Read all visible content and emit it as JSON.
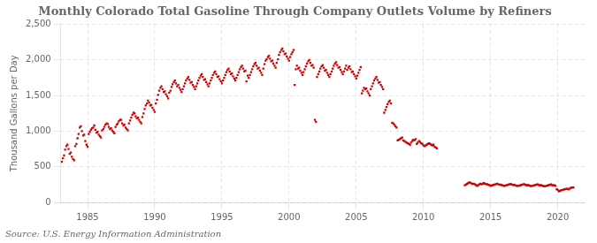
{
  "chart_data": {
    "type": "scatter",
    "title": "Monthly Colorado Total Gasoline Through Company Outlets Volume by Refiners",
    "ylabel": "Thousand Gallons per Day",
    "source": "Source: U.S. Energy Information Administration",
    "color": "#cc0000",
    "marker": "square",
    "grid": true,
    "xlim": [
      1983.0,
      2022.0
    ],
    "xticks": [
      1985,
      1990,
      1995,
      2000,
      2005,
      2010,
      2015,
      2020
    ],
    "ylim": [
      0,
      2500
    ],
    "yticks": [
      0,
      500,
      {
        "value": 1000,
        "label": "1,000"
      },
      {
        "value": 1500,
        "label": "1,500"
      },
      {
        "value": 2000,
        "label": "2,000"
      },
      {
        "value": 2500,
        "label": "2,500"
      }
    ],
    "x": [
      1983.08,
      1983.17,
      1983.25,
      1983.33,
      1983.42,
      1983.5,
      1983.58,
      1983.67,
      1983.75,
      1983.83,
      1983.92,
      1984.0,
      1984.08,
      1984.17,
      1984.25,
      1984.33,
      1984.42,
      1984.5,
      1984.58,
      1984.67,
      1984.75,
      1984.83,
      1984.92,
      1985.0,
      1985.08,
      1985.17,
      1985.25,
      1985.33,
      1985.42,
      1985.5,
      1985.58,
      1985.67,
      1985.75,
      1985.83,
      1985.92,
      1986.0,
      1986.08,
      1986.17,
      1986.25,
      1986.33,
      1986.42,
      1986.5,
      1986.58,
      1986.67,
      1986.75,
      1986.83,
      1986.92,
      1987.0,
      1987.08,
      1987.17,
      1987.25,
      1987.33,
      1987.42,
      1987.5,
      1987.58,
      1987.67,
      1987.75,
      1987.83,
      1987.92,
      1988.0,
      1988.08,
      1988.17,
      1988.25,
      1988.33,
      1988.42,
      1988.5,
      1988.58,
      1988.67,
      1988.75,
      1988.83,
      1988.92,
      1989.0,
      1989.08,
      1989.17,
      1989.25,
      1989.33,
      1989.42,
      1989.5,
      1989.58,
      1989.67,
      1989.75,
      1989.83,
      1989.92,
      1990.0,
      1990.08,
      1990.17,
      1990.25,
      1990.33,
      1990.42,
      1990.5,
      1990.58,
      1990.67,
      1990.75,
      1990.83,
      1990.92,
      1991.0,
      1991.08,
      1991.17,
      1991.25,
      1991.33,
      1991.42,
      1991.5,
      1991.58,
      1991.67,
      1991.75,
      1991.83,
      1991.92,
      1992.0,
      1992.08,
      1992.17,
      1992.25,
      1992.33,
      1992.42,
      1992.5,
      1992.58,
      1992.67,
      1992.75,
      1992.83,
      1992.92,
      1993.0,
      1993.08,
      1993.17,
      1993.25,
      1993.33,
      1993.42,
      1993.5,
      1993.58,
      1993.67,
      1993.75,
      1993.83,
      1993.92,
      1994.0,
      1994.08,
      1994.17,
      1994.25,
      1994.33,
      1994.42,
      1994.5,
      1994.58,
      1994.67,
      1994.75,
      1994.83,
      1994.92,
      1995.0,
      1995.08,
      1995.17,
      1995.25,
      1995.33,
      1995.42,
      1995.5,
      1995.58,
      1995.67,
      1995.75,
      1995.83,
      1995.92,
      1996.0,
      1996.08,
      1996.17,
      1996.25,
      1996.33,
      1996.42,
      1996.5,
      1996.58,
      1996.67,
      1996.75,
      1996.83,
      1996.92,
      1997.0,
      1997.08,
      1997.17,
      1997.25,
      1997.33,
      1997.42,
      1997.5,
      1997.58,
      1997.67,
      1997.75,
      1997.83,
      1997.92,
      1998.0,
      1998.08,
      1998.17,
      1998.25,
      1998.33,
      1998.42,
      1998.5,
      1998.58,
      1998.67,
      1998.75,
      1998.83,
      1998.92,
      1999.0,
      1999.08,
      1999.17,
      1999.25,
      1999.33,
      1999.42,
      1999.5,
      1999.58,
      1999.67,
      1999.75,
      1999.83,
      1999.92,
      2000.0,
      2000.08,
      2000.17,
      2000.25,
      2000.33,
      2000.42,
      2000.5,
      2000.58,
      2000.67,
      2000.75,
      2000.83,
      2000.92,
      2001.0,
      2001.08,
      2001.17,
      2001.25,
      2001.33,
      2001.42,
      2001.5,
      2001.58,
      2001.67,
      2001.75,
      2001.83,
      2001.92,
      2002.0,
      2002.08,
      2002.17,
      2002.25,
      2002.33,
      2002.42,
      2002.5,
      2002.58,
      2002.67,
      2002.75,
      2002.83,
      2002.92,
      2003.0,
      2003.08,
      2003.17,
      2003.25,
      2003.33,
      2003.42,
      2003.5,
      2003.58,
      2003.67,
      2003.75,
      2003.83,
      2003.92,
      2004.0,
      2004.08,
      2004.17,
      2004.25,
      2004.33,
      2004.42,
      2004.5,
      2004.58,
      2004.67,
      2004.75,
      2004.83,
      2004.92,
      2005.0,
      2005.08,
      2005.17,
      2005.25,
      2005.33,
      2005.42,
      2005.5,
      2005.58,
      2005.67,
      2005.75,
      2005.83,
      2005.92,
      2006.0,
      2006.08,
      2006.17,
      2006.25,
      2006.33,
      2006.42,
      2006.5,
      2006.58,
      2006.67,
      2006.75,
      2006.83,
      2006.92,
      2007.0,
      2007.08,
      2007.17,
      2007.25,
      2007.33,
      2007.42,
      2007.5,
      2007.58,
      2007.67,
      2007.75,
      2007.83,
      2007.92,
      2008.0,
      2008.08,
      2008.17,
      2008.25,
      2008.33,
      2008.42,
      2008.5,
      2008.58,
      2008.67,
      2008.75,
      2008.83,
      2008.92,
      2009.0,
      2009.08,
      2009.17,
      2009.25,
      2009.33,
      2009.42,
      2009.5,
      2009.58,
      2009.67,
      2009.75,
      2009.83,
      2009.92,
      2010.0,
      2010.08,
      2010.17,
      2010.25,
      2010.33,
      2010.42,
      2010.5,
      2010.58,
      2010.67,
      2010.75,
      2010.83,
      2010.92,
      2011.0,
      2013.08,
      2013.17,
      2013.25,
      2013.33,
      2013.42,
      2013.5,
      2013.58,
      2013.67,
      2013.75,
      2013.83,
      2013.92,
      2014.0,
      2014.08,
      2014.17,
      2014.25,
      2014.33,
      2014.42,
      2014.5,
      2014.58,
      2014.67,
      2014.75,
      2014.83,
      2014.92,
      2015.0,
      2015.08,
      2015.17,
      2015.25,
      2015.33,
      2015.42,
      2015.5,
      2015.58,
      2015.67,
      2015.75,
      2015.83,
      2015.92,
      2016.0,
      2016.08,
      2016.17,
      2016.25,
      2016.33,
      2016.42,
      2016.5,
      2016.58,
      2016.67,
      2016.75,
      2016.83,
      2016.92,
      2017.0,
      2017.08,
      2017.17,
      2017.25,
      2017.33,
      2017.42,
      2017.5,
      2017.58,
      2017.67,
      2017.75,
      2017.83,
      2017.92,
      2018.0,
      2018.08,
      2018.17,
      2018.25,
      2018.33,
      2018.42,
      2018.5,
      2018.58,
      2018.67,
      2018.75,
      2018.83,
      2018.92,
      2019.0,
      2019.08,
      2019.17,
      2019.25,
      2019.33,
      2019.42,
      2019.5,
      2019.58,
      2019.67,
      2019.75,
      2019.83,
      2019.92,
      2020.0,
      2020.08,
      2020.17,
      2020.25,
      2020.33,
      2020.42,
      2020.5,
      2020.58,
      2020.67,
      2020.75,
      2020.83,
      2020.92,
      2021.0,
      2021.08,
      2021.17
    ],
    "values": [
      570,
      620,
      660,
      740,
      790,
      810,
      750,
      680,
      700,
      640,
      610,
      590,
      790,
      820,
      900,
      960,
      1050,
      1070,
      1000,
      940,
      950,
      860,
      810,
      780,
      960,
      990,
      1020,
      1040,
      1050,
      1080,
      1020,
      980,
      990,
      950,
      930,
      910,
      1010,
      1030,
      1060,
      1090,
      1110,
      1100,
      1060,
      1030,
      1040,
      1010,
      990,
      970,
      1060,
      1090,
      1110,
      1140,
      1160,
      1160,
      1110,
      1080,
      1090,
      1050,
      1030,
      1010,
      1110,
      1150,
      1190,
      1230,
      1260,
      1250,
      1210,
      1180,
      1190,
      1160,
      1130,
      1110,
      1200,
      1250,
      1310,
      1360,
      1390,
      1430,
      1400,
      1360,
      1370,
      1330,
      1300,
      1270,
      1390,
      1440,
      1510,
      1570,
      1610,
      1630,
      1590,
      1550,
      1560,
      1520,
      1490,
      1460,
      1540,
      1570,
      1620,
      1660,
      1690,
      1710,
      1670,
      1630,
      1650,
      1610,
      1580,
      1550,
      1590,
      1630,
      1670,
      1710,
      1740,
      1760,
      1720,
      1680,
      1690,
      1650,
      1620,
      1590,
      1630,
      1670,
      1710,
      1750,
      1780,
      1800,
      1760,
      1720,
      1730,
      1690,
      1660,
      1630,
      1670,
      1710,
      1750,
      1790,
      1820,
      1840,
      1800,
      1760,
      1770,
      1730,
      1700,
      1670,
      1710,
      1750,
      1790,
      1830,
      1860,
      1880,
      1840,
      1800,
      1810,
      1770,
      1740,
      1710,
      1750,
      1790,
      1830,
      1870,
      1900,
      1920,
      1880,
      1840,
      1850,
      1700,
      1780,
      1750,
      1790,
      1830,
      1870,
      1910,
      1940,
      1960,
      1920,
      1880,
      1890,
      1850,
      1820,
      1790,
      1880,
      1940,
      1990,
      2010,
      2040,
      2060,
      2020,
      1980,
      1990,
      1950,
      1920,
      1890,
      1960,
      2010,
      2070,
      2110,
      2140,
      2160,
      2120,
      2080,
      2090,
      2050,
      2020,
      1990,
      2040,
      2080,
      2110,
      2140,
      1650,
      1870,
      1920,
      1880,
      1890,
      1850,
      1820,
      1790,
      1830,
      1870,
      1910,
      1950,
      1980,
      2000,
      1960,
      1920,
      1930,
      1890,
      1160,
      1130,
      1760,
      1800,
      1840,
      1880,
      1910,
      1930,
      1890,
      1850,
      1860,
      1820,
      1790,
      1760,
      1800,
      1840,
      1880,
      1920,
      1950,
      1970,
      1930,
      1890,
      1900,
      1860,
      1830,
      1800,
      1840,
      1880,
      1920,
      1860,
      1890,
      1910,
      1870,
      1830,
      1840,
      1800,
      1770,
      1740,
      1780,
      1820,
      1860,
      1900,
      1530,
      1570,
      1610,
      1590,
      1600,
      1560,
      1530,
      1500,
      1590,
      1630,
      1670,
      1710,
      1740,
      1760,
      1720,
      1680,
      1690,
      1650,
      1620,
      1590,
      1260,
      1300,
      1340,
      1380,
      1410,
      1430,
      1390,
      1120,
      1110,
      1090,
      1070,
      1050,
      870,
      880,
      890,
      900,
      910,
      870,
      860,
      850,
      840,
      830,
      820,
      810,
      840,
      860,
      880,
      870,
      890,
      820,
      840,
      860,
      850,
      830,
      820,
      800,
      790,
      800,
      810,
      820,
      830,
      820,
      810,
      800,
      810,
      780,
      770,
      760,
      240,
      250,
      260,
      270,
      280,
      275,
      265,
      258,
      262,
      252,
      242,
      232,
      242,
      252,
      262,
      252,
      262,
      270,
      262,
      252,
      257,
      247,
      242,
      232,
      237,
      242,
      247,
      252,
      257,
      262,
      252,
      247,
      250,
      242,
      237,
      232,
      234,
      240,
      244,
      250,
      254,
      260,
      250,
      244,
      247,
      240,
      235,
      230,
      232,
      237,
      242,
      247,
      252,
      257,
      247,
      242,
      245,
      239,
      234,
      229,
      230,
      235,
      240,
      245,
      250,
      254,
      244,
      239,
      242,
      235,
      230,
      225,
      227,
      232,
      237,
      242,
      247,
      252,
      242,
      237,
      240,
      232,
      185,
      175,
      155,
      163,
      168,
      173,
      178,
      183,
      188,
      192,
      187,
      182,
      198,
      205,
      208,
      210
    ]
  }
}
